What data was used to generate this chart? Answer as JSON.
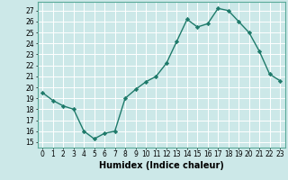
{
  "x": [
    0,
    1,
    2,
    3,
    4,
    5,
    6,
    7,
    8,
    9,
    10,
    11,
    12,
    13,
    14,
    15,
    16,
    17,
    18,
    19,
    20,
    21,
    22,
    23
  ],
  "y": [
    19.5,
    18.8,
    18.3,
    18.0,
    16.0,
    15.3,
    15.8,
    16.0,
    19.0,
    19.8,
    20.5,
    21.0,
    22.2,
    24.2,
    26.2,
    25.5,
    25.8,
    27.2,
    27.0,
    26.0,
    25.0,
    23.3,
    21.2,
    20.6
  ],
  "line_color": "#1e7a6a",
  "marker": "D",
  "markersize": 2.2,
  "linewidth": 1.0,
  "xlabel": "Humidex (Indice chaleur)",
  "xlabel_fontsize": 7,
  "ylabel_ticks": [
    15,
    16,
    17,
    18,
    19,
    20,
    21,
    22,
    23,
    24,
    25,
    26,
    27
  ],
  "xtick_labels": [
    "0",
    "1",
    "2",
    "3",
    "4",
    "5",
    "6",
    "7",
    "8",
    "9",
    "10",
    "11",
    "12",
    "13",
    "14",
    "15",
    "16",
    "17",
    "18",
    "19",
    "20",
    "21",
    "22",
    "23"
  ],
  "ylim": [
    14.5,
    27.8
  ],
  "xlim": [
    -0.5,
    23.5
  ],
  "bg_color": "#cce8e8",
  "grid_color": "#ffffff",
  "tick_fontsize": 5.5,
  "spine_color": "#5aaa99"
}
